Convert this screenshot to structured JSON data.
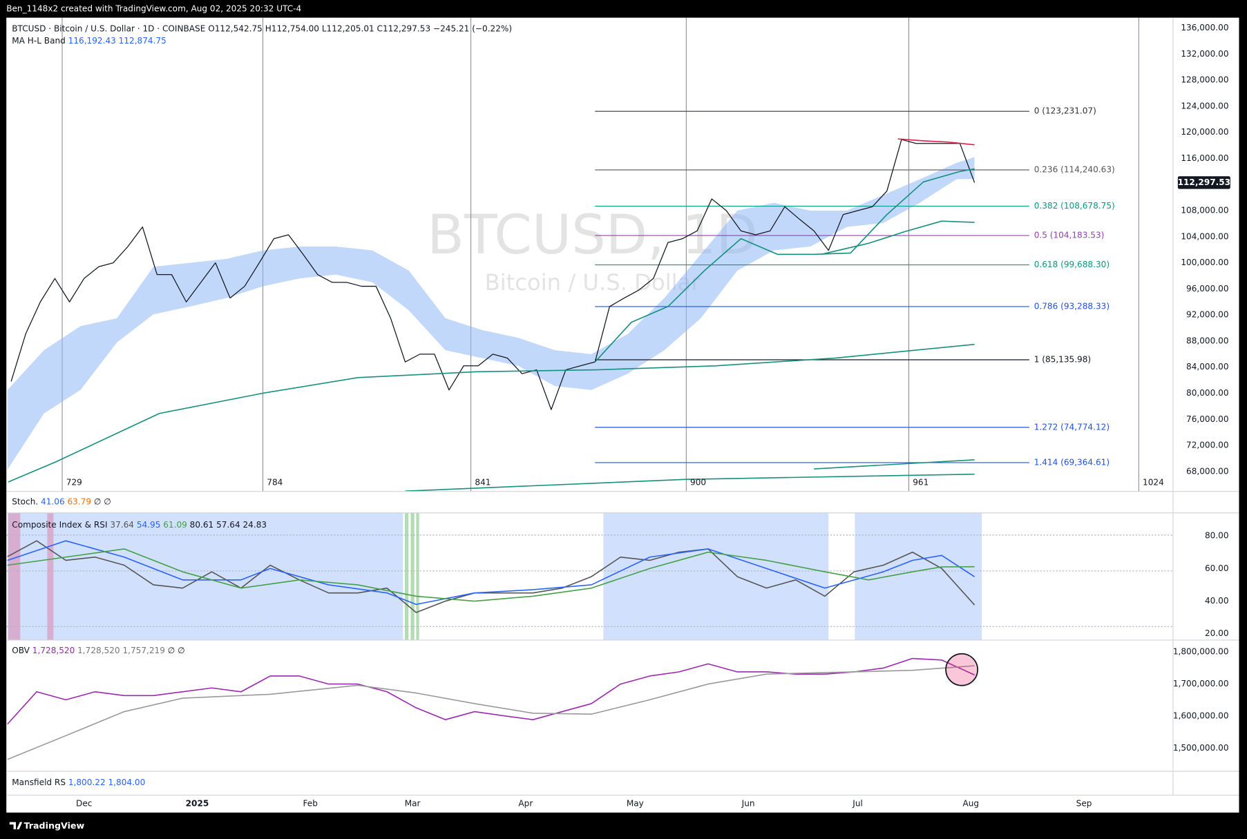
{
  "header": {
    "text": "Ben_1148x2 created with TradingView.com, Aug 02, 2025 20:32 UTC-4"
  },
  "footer": {
    "logo": "TradingView"
  },
  "stoch": {
    "name": "Stoch.",
    "values": [
      "41.06",
      "63.79"
    ],
    "tail": "∅ ∅"
  },
  "mansfield": {
    "name": "Mansfield RS",
    "values": [
      "1,800.22",
      "1,804.00"
    ]
  },
  "chart_data": [
    {
      "type": "line",
      "title": "BTCUSD · Bitcoin / U.S. Dollar · 1D · COINBASE",
      "ohlc": [
        "O112,542.75",
        "H112,754.00",
        "L112,205.01",
        "C112,297.53",
        "−245.21 (−0.22%)"
      ],
      "watermark": [
        "BTCUSD, 1D",
        "Bitcoin / U.S. Dollar"
      ],
      "xlim": [
        713.7,
        1033.4
      ],
      "ylim": [
        64950,
        137580
      ],
      "xticks": [
        {
          "value": 735,
          "label": "Dec"
        },
        {
          "value": 766,
          "label": "2025"
        },
        {
          "value": 797,
          "label": "Feb"
        },
        {
          "value": 825,
          "label": "Mar"
        },
        {
          "value": 856,
          "label": "Apr"
        },
        {
          "value": 886,
          "label": "May"
        },
        {
          "value": 917,
          "label": "Jun"
        },
        {
          "value": 947,
          "label": "Jul"
        },
        {
          "value": 978,
          "label": "Aug"
        },
        {
          "value": 1009,
          "label": "Sep"
        }
      ],
      "bar_counts": [
        729,
        784,
        841,
        900,
        961,
        1024
      ],
      "yticks": [
        {
          "value": 68000,
          "label": "68,000.00"
        },
        {
          "value": 72000,
          "label": "72,000.00"
        },
        {
          "value": 76000,
          "label": "76,000.00"
        },
        {
          "value": 80000,
          "label": "80,000.00"
        },
        {
          "value": 84000,
          "label": "84,000.00"
        },
        {
          "value": 88000,
          "label": "88,000.00"
        },
        {
          "value": 92000,
          "label": "92,000.00"
        },
        {
          "value": 96000,
          "label": "96,000.00"
        },
        {
          "value": 100000,
          "label": "100,000.00"
        },
        {
          "value": 104000,
          "label": "104,000.00"
        },
        {
          "value": 108000,
          "label": "108,000.00"
        },
        {
          "value": 112000,
          "label": "112,000.00"
        },
        {
          "value": 116000,
          "label": "116,000.00"
        },
        {
          "value": 120000,
          "label": "120,000.00"
        },
        {
          "value": 124000,
          "label": "124,000.00"
        },
        {
          "value": 128000,
          "label": "128,000.00"
        },
        {
          "value": 132000,
          "label": "132,000.00"
        },
        {
          "value": 136000,
          "label": "136,000.00"
        }
      ],
      "last_price": {
        "value": 112297.53,
        "label": "112,297.53"
      },
      "band": {
        "name": "MA H-L Band",
        "value_labels": [
          "116,192.43",
          "112,874.75"
        ],
        "color": "#90b8f8",
        "x": [
          714,
          724,
          734,
          744,
          754,
          764,
          774,
          784,
          794,
          804,
          814,
          824,
          834,
          844,
          854,
          864,
          874,
          884,
          894,
          904,
          914,
          924,
          934,
          944,
          954,
          964,
          974,
          979
        ],
        "upper": [
          80500,
          86600,
          90300,
          91500,
          99400,
          100000,
          100600,
          101900,
          102500,
          102500,
          101900,
          98800,
          91500,
          89700,
          88500,
          86600,
          86000,
          89100,
          94600,
          101300,
          108000,
          109200,
          108000,
          108000,
          110400,
          112800,
          115300,
          116192.43
        ],
        "lower": [
          68300,
          76900,
          80500,
          87800,
          92100,
          93300,
          94600,
          96400,
          97600,
          98200,
          97000,
          92700,
          86600,
          85400,
          84200,
          81100,
          80500,
          83000,
          86600,
          91500,
          98800,
          101900,
          102500,
          105500,
          106100,
          109200,
          112800,
          112874.75
        ]
      },
      "series": [
        {
          "color": "#131722",
          "x": [
            715,
            719,
            723,
            727,
            731,
            735,
            739,
            743,
            747,
            751,
            755,
            759,
            763,
            767,
            771,
            775,
            779,
            783,
            787,
            791,
            795,
            799,
            803,
            807,
            811,
            815,
            819,
            823,
            827,
            831,
            835,
            839,
            843,
            847,
            851,
            855,
            859,
            863,
            867,
            871,
            875,
            879,
            883,
            887,
            891,
            895,
            899,
            903,
            907,
            911,
            915,
            919,
            923,
            927,
            931,
            935,
            939,
            943,
            947,
            951,
            955,
            959,
            963,
            967,
            971,
            975,
            979
          ],
          "values": [
            81800,
            89100,
            94000,
            97600,
            94000,
            97600,
            99400,
            100000,
            102500,
            105500,
            98200,
            98200,
            94000,
            97000,
            100000,
            94600,
            96400,
            100000,
            103700,
            104300,
            101300,
            98200,
            97000,
            97000,
            96400,
            96400,
            91500,
            84800,
            86000,
            86000,
            80500,
            84200,
            84200,
            86000,
            85400,
            83000,
            83600,
            77500,
            83600,
            84200,
            84800,
            93300,
            94600,
            95800,
            97600,
            103100,
            103700,
            104900,
            109800,
            108000,
            104900,
            104300,
            104900,
            108600,
            106700,
            104900,
            101900,
            107400,
            108000,
            108600,
            111000,
            118900,
            118300,
            118300,
            118300,
            118300,
            112297.53
          ]
        },
        {
          "color": "#14907c",
          "x": [
            875,
            885,
            895,
            905,
            915,
            925,
            935,
            945,
            955,
            965,
            975,
            979
          ],
          "values": [
            84800,
            90900,
            93300,
            98800,
            103700,
            101300,
            101300,
            101500,
            107400,
            112400,
            114000,
            114400
          ]
        },
        {
          "color": "#14907c",
          "x": [
            937,
            950,
            960,
            970,
            979
          ],
          "values": [
            101300,
            103000,
            104800,
            106400,
            106200
          ]
        },
        {
          "color": "#14907c",
          "x": [
            714.2,
            727.3,
            755.6,
            783.9,
            810,
            842.7,
            875.4,
            908,
            940.8,
            979
          ],
          "values": [
            66400,
            69500,
            76900,
            80000,
            82400,
            83300,
            83600,
            84200,
            85400,
            87500
          ]
        },
        {
          "color": "#14907c",
          "x": [
            823,
            900,
            979
          ],
          "values": [
            65000,
            66800,
            67600
          ]
        },
        {
          "color": "#14907c",
          "x": [
            935,
            979
          ],
          "values": [
            68400,
            69800
          ]
        },
        {
          "color": "#e0204a",
          "x": [
            958,
            965,
            972,
            979
          ],
          "values": [
            119000,
            118700,
            118500,
            118100
          ]
        }
      ],
      "fib": {
        "x_range": [
          875,
          994
        ],
        "levels": [
          {
            "value": 123231.07,
            "label": "0 (123,231.07)",
            "color": "#333333"
          },
          {
            "value": 114240.63,
            "label": "0.236 (114,240.63)",
            "color": "#555555"
          },
          {
            "value": 108678.75,
            "label": "0.382 (108,678.75)",
            "color": "#089981"
          },
          {
            "value": 104183.53,
            "label": "0.5 (104,183.53)",
            "color": "#8e44ad"
          },
          {
            "value": 99688.3,
            "label": "0.618 (99,688.30)",
            "color": "#089981"
          },
          {
            "value": 93288.33,
            "label": "0.786 (93,288.33)",
            "color": "#1e53e5"
          },
          {
            "value": 85135.98,
            "label": "1 (85,135.98)",
            "color": "#131722"
          },
          {
            "value": 74774.12,
            "label": "1.272 (74,774.12)",
            "color": "#1e53e5"
          },
          {
            "value": 69364.61,
            "label": "1.414 (69,364.61)",
            "color": "#1e53e5"
          }
        ]
      }
    },
    {
      "type": "line",
      "title": "Composite Index & RSI",
      "value_labels": [
        "37.64",
        "54.95",
        "61.09",
        "80.61",
        "57.64",
        "24.83"
      ],
      "xlim": [
        713.7,
        1033.4
      ],
      "ylim": [
        16.1,
        94.1
      ],
      "yticks": [
        {
          "value": 80,
          "label": "80.00"
        },
        {
          "value": 60,
          "label": "60.00"
        },
        {
          "value": 40,
          "label": "40.00"
        },
        {
          "value": 20,
          "label": "20.00"
        }
      ],
      "hlines": [
        80.5,
        58.5,
        24.4
      ],
      "regions": [
        {
          "range": [
            714,
            822.4
          ],
          "color": "#c9dafb"
        },
        {
          "range": [
            877.3,
            939
          ],
          "color": "#c9dafb"
        },
        {
          "range": [
            946.2,
            981
          ],
          "color": "#c9dafb"
        },
        {
          "range": [
            714.2,
            717.5
          ],
          "color": "#d8a4c8"
        },
        {
          "range": [
            724.9,
            726.6
          ],
          "color": "#d8a4c8"
        },
        {
          "range": [
            822.9,
            823.9
          ],
          "color": "#a5d6a7"
        },
        {
          "range": [
            824.5,
            825.5
          ],
          "color": "#a5d6a7"
        },
        {
          "range": [
            826,
            826.8
          ],
          "color": "#a5d6a7"
        }
      ],
      "series": [
        {
          "color": "#555555",
          "x": [
            714,
            722,
            730,
            738,
            746,
            754,
            762,
            770,
            778,
            786,
            794,
            802,
            810,
            818,
            826,
            834,
            842,
            850,
            858,
            866,
            874,
            882,
            890,
            898,
            906,
            914,
            922,
            930,
            938,
            946,
            954,
            962,
            970,
            979
          ],
          "values": [
            67.3,
            77,
            65,
            67,
            62,
            50,
            48,
            58,
            48,
            62,
            53,
            45,
            45,
            48,
            33,
            40,
            45,
            45,
            45,
            48,
            55,
            67,
            65,
            70,
            72,
            55,
            48,
            53,
            43,
            58,
            62,
            70,
            60,
            37.64
          ]
        },
        {
          "color": "#2962ff",
          "x": [
            714,
            730,
            746,
            762,
            778,
            786,
            802,
            818,
            826,
            842,
            858,
            874,
            890,
            906,
            922,
            938,
            954,
            962,
            970,
            979
          ],
          "values": [
            65,
            77,
            67,
            53,
            53,
            60,
            50,
            45,
            38,
            45,
            47,
            50,
            67,
            72,
            60,
            48,
            58,
            65,
            68,
            54.95
          ]
        },
        {
          "color": "#43a047",
          "x": [
            714,
            730,
            746,
            762,
            778,
            794,
            810,
            826,
            842,
            858,
            874,
            890,
            906,
            922,
            938,
            950,
            962,
            970,
            979
          ],
          "values": [
            62,
            67,
            72,
            58,
            48,
            53,
            50,
            43,
            40,
            43,
            48,
            60,
            70,
            65,
            58,
            53,
            58,
            61,
            61.09
          ]
        }
      ]
    },
    {
      "type": "line",
      "title": "OBV",
      "value_labels": [
        "1,728,520",
        "1,728,520",
        "1,757,219"
      ],
      "tail": "∅ ∅",
      "xlim": [
        713.7,
        1033.4
      ],
      "ylim": [
        1428000,
        1837200
      ],
      "yticks": [
        {
          "value": 1800000,
          "label": "1,800,000.00"
        },
        {
          "value": 1700000,
          "label": "1,700,000.00"
        },
        {
          "value": 1600000,
          "label": "1,600,000.00"
        },
        {
          "value": 1500000,
          "label": "1,500,000.00"
        }
      ],
      "annotation": {
        "x": 975.5,
        "y": 1745000,
        "color": "#e91e63"
      },
      "series": [
        {
          "color": "#9c27b0",
          "x": [
            714,
            722,
            730,
            738,
            746,
            754,
            762,
            770,
            778,
            786,
            794,
            802,
            810,
            818,
            826,
            834,
            842,
            850,
            858,
            866,
            874,
            882,
            890,
            898,
            906,
            914,
            922,
            930,
            938,
            946,
            954,
            962,
            970,
            979
          ],
          "values": [
            1575000,
            1676000,
            1651000,
            1676000,
            1664000,
            1664000,
            1676000,
            1688000,
            1676000,
            1725000,
            1725000,
            1700000,
            1700000,
            1676000,
            1626000,
            1589000,
            1614000,
            1601000,
            1589000,
            1614000,
            1639000,
            1700000,
            1725000,
            1738000,
            1763000,
            1738000,
            1738000,
            1731000,
            1731000,
            1738000,
            1750000,
            1780000,
            1775000,
            1728520
          ]
        },
        {
          "color": "#999999",
          "x": [
            714,
            730,
            746,
            762,
            786,
            810,
            826,
            842,
            858,
            874,
            890,
            906,
            922,
            946,
            962,
            979
          ],
          "values": [
            1465000,
            1539000,
            1614000,
            1656000,
            1668000,
            1696000,
            1672000,
            1639000,
            1609000,
            1606000,
            1651000,
            1700000,
            1731000,
            1738000,
            1743000,
            1757219
          ]
        }
      ]
    }
  ]
}
